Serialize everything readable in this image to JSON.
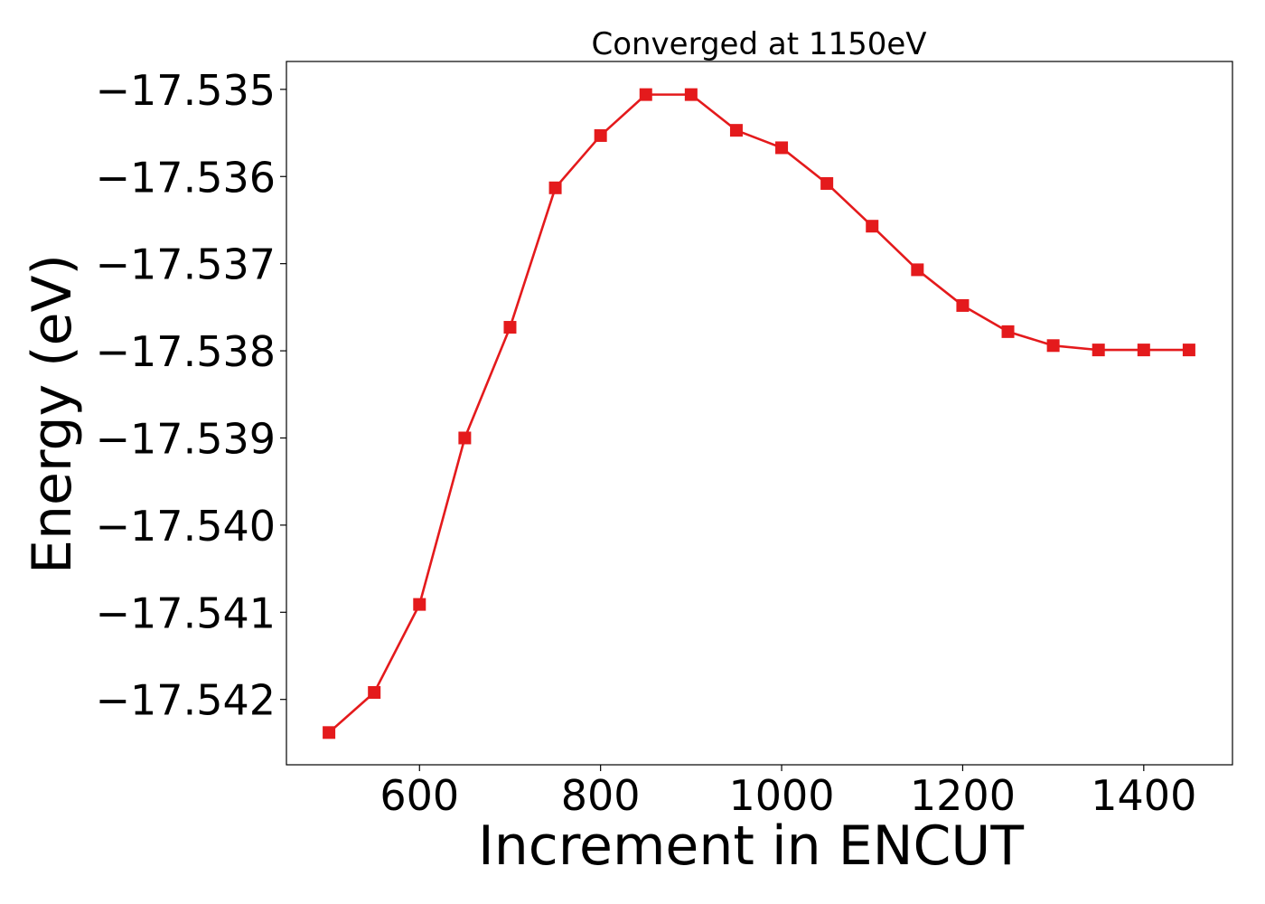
{
  "chart_data": {
    "type": "line",
    "title": "Converged at 1150eV",
    "xlabel": "Increment in ENCUT",
    "ylabel": "Energy (eV)",
    "xlim": [
      453,
      1498
    ],
    "ylim": [
      -17.54275,
      -17.53468
    ],
    "xticks": [
      600,
      800,
      1000,
      1200,
      1400
    ],
    "yticks": [
      -17.535,
      -17.536,
      -17.537,
      -17.538,
      -17.539,
      -17.54,
      -17.541,
      -17.542
    ],
    "ytick_labels": [
      "−17.535",
      "−17.536",
      "−17.537",
      "−17.538",
      "−17.539",
      "−17.540",
      "−17.541",
      "−17.542"
    ],
    "grid": false,
    "series": [
      {
        "color": "#e41a1c",
        "marker": "square",
        "x": [
          500,
          550,
          600,
          650,
          700,
          750,
          800,
          850,
          900,
          950,
          1000,
          1050,
          1100,
          1150,
          1200,
          1250,
          1300,
          1350,
          1400,
          1450
        ],
        "y": [
          -17.54238,
          -17.54192,
          -17.54091,
          -17.539,
          -17.53773,
          -17.53613,
          -17.53553,
          -17.53506,
          -17.53506,
          -17.53547,
          -17.53567,
          -17.53608,
          -17.53657,
          -17.53707,
          -17.53748,
          -17.53778,
          -17.53794,
          -17.53799,
          -17.53799,
          -17.53799
        ]
      }
    ]
  }
}
